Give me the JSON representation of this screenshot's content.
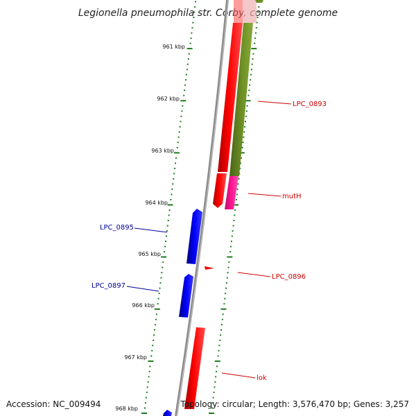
{
  "title": "Legionella pneumophila str. Corby, complete genome",
  "footer": {
    "accession": "Accession: NC_009494",
    "topology": "Topology: circular; Length: 3,576,470 bp; Genes: 3,257"
  },
  "ticks": [
    "961 kbp",
    "962 kbp",
    "963 kbp",
    "964 kbp",
    "965 kbp",
    "966 kbp",
    "967 kbp",
    "968 kbp"
  ],
  "genes": {
    "lpc0893": "LPC_0893",
    "mutH": "mutH",
    "lpc0896": "LPC_0896",
    "lpc0895": "LPC_0895",
    "lpc0897": "LPC_0897",
    "lok": "lok"
  },
  "colors": {
    "forward_gene": "#ff0000",
    "reverse_gene": "#0000ff",
    "cog_olive": "#6b8e23",
    "cog_magenta": "#ff1493",
    "tick_green": "#1a7a1a",
    "backbone": "#8c8c8c",
    "forward_label": "#cc0000",
    "reverse_label": "#000099"
  }
}
